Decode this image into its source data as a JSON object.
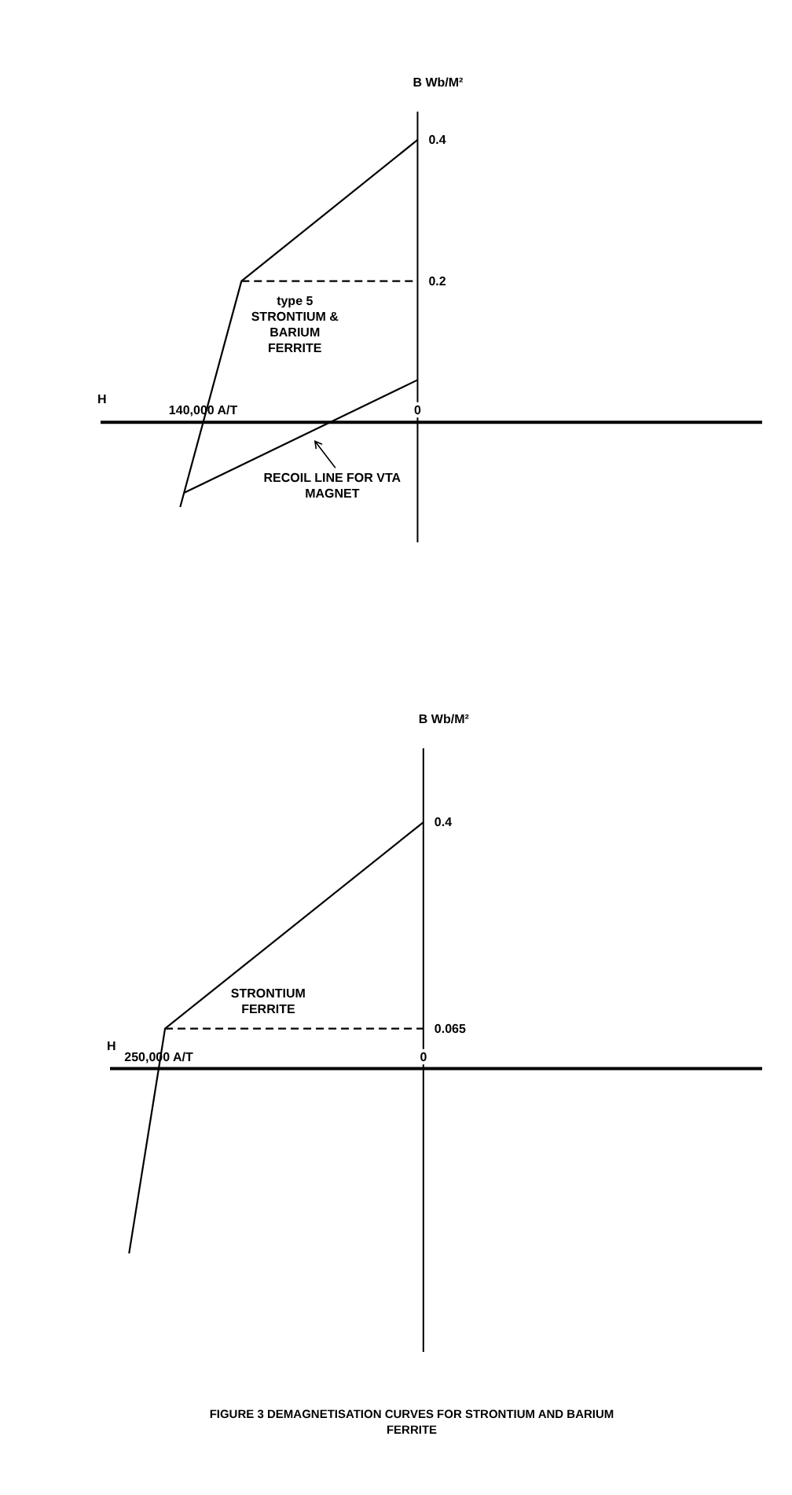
{
  "chart_data": [
    {
      "type": "line",
      "xlabel": "H",
      "ylabel": "B Wb/M²",
      "xlim": [
        -207000,
        225000
      ],
      "ylim": [
        -0.17,
        0.44
      ],
      "xticks": [
        {
          "value": -140000,
          "label": "140,000 A/T"
        },
        0
      ],
      "yticks": [
        0.2,
        0.4
      ],
      "line_style": "solid",
      "series": [
        {
          "name": "type 5 STRONTIUM & BARIUM FERRITE",
          "color": "#000000",
          "x": [
            0,
            -115000,
            -140000,
            -155000
          ],
          "values": [
            0.4,
            0.2,
            0,
            -0.12
          ]
        },
        {
          "color": "#000000",
          "line_style": "dashed",
          "x": [
            -115000,
            0
          ],
          "values": [
            0.2,
            0.2
          ]
        },
        {
          "name": "RECOIL LINE FOR VTA MAGNET",
          "color": "#000000",
          "x": [
            -152500,
            0
          ],
          "values": [
            -0.1,
            0.06
          ]
        }
      ]
    },
    {
      "type": "line",
      "xlabel": "H",
      "ylabel": "B Wb/M²",
      "xlim": [
        -296000,
        320000
      ],
      "ylim": [
        -0.46,
        0.52
      ],
      "xticks": [
        {
          "value": -250000,
          "label": "250,000 A/T"
        },
        0
      ],
      "yticks": [
        0.065,
        0.4
      ],
      "line_style": "solid",
      "series": [
        {
          "name": "STRONTIUM FERRITE",
          "color": "#000000",
          "x": [
            0,
            -244000,
            -250000,
            -278000
          ],
          "values": [
            0.4,
            0.065,
            0,
            -0.3
          ]
        },
        {
          "color": "#000000",
          "line_style": "dashed",
          "x": [
            -244000,
            0
          ],
          "values": [
            0.065,
            0.065
          ]
        }
      ],
      "annotations": [
        "FIGURE 3 DEMAGNETISATION CURVES FOR STRONTIUM AND BARIUM FERRITE"
      ]
    }
  ]
}
